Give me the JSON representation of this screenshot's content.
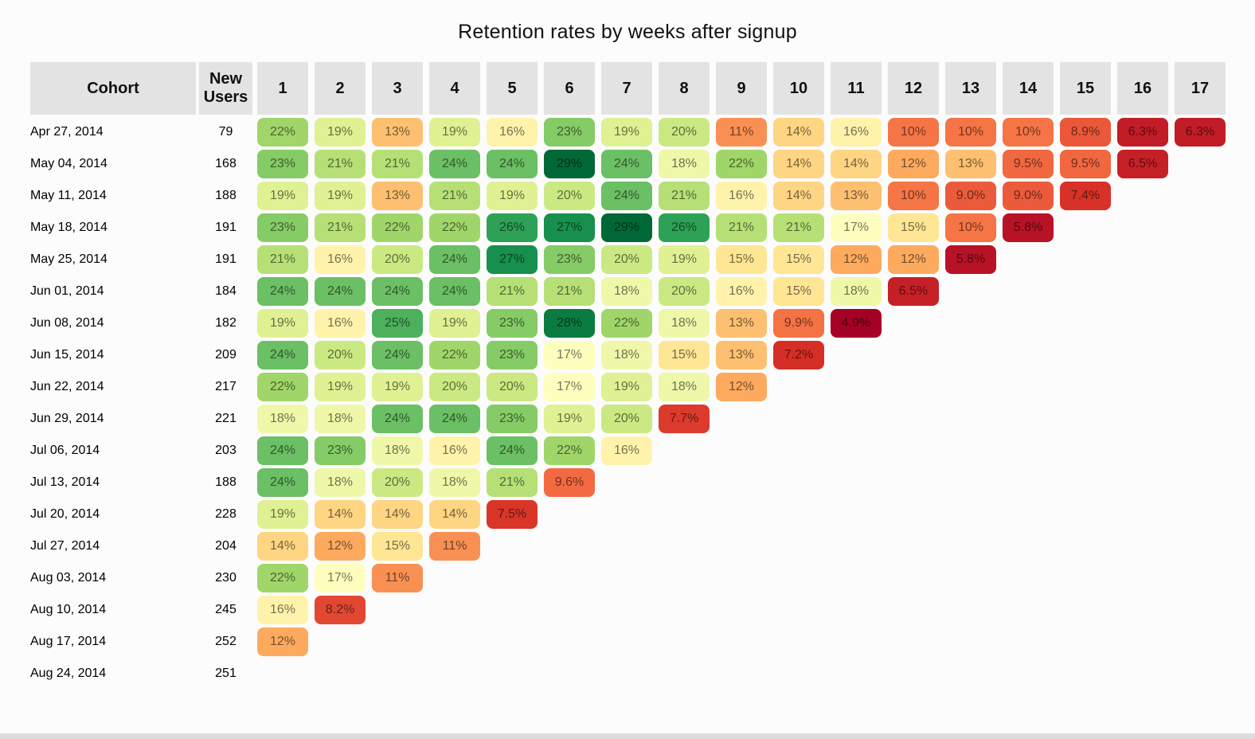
{
  "title": "Retention rates by weeks after signup",
  "table": {
    "cohort_header": "Cohort",
    "new_users_header": "New Users",
    "week_headers": [
      "1",
      "2",
      "3",
      "4",
      "5",
      "6",
      "7",
      "8",
      "9",
      "10",
      "11",
      "12",
      "13",
      "14",
      "15",
      "16",
      "17"
    ]
  },
  "chart_data": {
    "type": "heatmap",
    "title": "Retention rates by weeks after signup",
    "columns": [
      1,
      2,
      3,
      4,
      5,
      6,
      7,
      8,
      9,
      10,
      11,
      12,
      13,
      14,
      15,
      16,
      17
    ],
    "rows": [
      {
        "cohort": "Apr 27, 2014",
        "new_users": 79,
        "values": [
          22,
          19,
          13,
          19,
          16,
          23,
          19,
          20,
          11,
          14,
          16,
          10,
          10,
          10,
          8.9,
          6.3,
          6.3
        ]
      },
      {
        "cohort": "May 04, 2014",
        "new_users": 168,
        "values": [
          23,
          21,
          21,
          24,
          24,
          29,
          24,
          18,
          22,
          14,
          14,
          12,
          13,
          9.5,
          9.5,
          6.5
        ]
      },
      {
        "cohort": "May 11, 2014",
        "new_users": 188,
        "values": [
          19,
          19,
          13,
          21,
          19,
          20,
          24,
          21,
          16,
          14,
          13,
          10,
          9.0,
          9.0,
          7.4
        ]
      },
      {
        "cohort": "May 18, 2014",
        "new_users": 191,
        "values": [
          23,
          21,
          22,
          22,
          26,
          27,
          29,
          26,
          21,
          21,
          17,
          15,
          10,
          5.8
        ]
      },
      {
        "cohort": "May 25, 2014",
        "new_users": 191,
        "values": [
          21,
          16,
          20,
          24,
          27,
          23,
          20,
          19,
          15,
          15,
          12,
          12,
          5.8
        ]
      },
      {
        "cohort": "Jun 01, 2014",
        "new_users": 184,
        "values": [
          24,
          24,
          24,
          24,
          21,
          21,
          18,
          20,
          16,
          15,
          18,
          6.5
        ]
      },
      {
        "cohort": "Jun 08, 2014",
        "new_users": 182,
        "values": [
          19,
          16,
          25,
          19,
          23,
          28,
          22,
          18,
          13,
          9.9,
          4.9
        ]
      },
      {
        "cohort": "Jun 15, 2014",
        "new_users": 209,
        "values": [
          24,
          20,
          24,
          22,
          23,
          17,
          18,
          15,
          13,
          7.2
        ]
      },
      {
        "cohort": "Jun 22, 2014",
        "new_users": 217,
        "values": [
          22,
          19,
          19,
          20,
          20,
          17,
          19,
          18,
          12
        ]
      },
      {
        "cohort": "Jun 29, 2014",
        "new_users": 221,
        "values": [
          18,
          18,
          24,
          24,
          23,
          19,
          20,
          7.7
        ]
      },
      {
        "cohort": "Jul 06, 2014",
        "new_users": 203,
        "values": [
          24,
          23,
          18,
          16,
          24,
          22,
          16
        ]
      },
      {
        "cohort": "Jul 13, 2014",
        "new_users": 188,
        "values": [
          24,
          18,
          20,
          18,
          21,
          9.6
        ]
      },
      {
        "cohort": "Jul 20, 2014",
        "new_users": 228,
        "values": [
          19,
          14,
          14,
          14,
          7.5
        ]
      },
      {
        "cohort": "Jul 27, 2014",
        "new_users": 204,
        "values": [
          14,
          12,
          15,
          11
        ]
      },
      {
        "cohort": "Aug 03, 2014",
        "new_users": 230,
        "values": [
          22,
          17,
          11
        ]
      },
      {
        "cohort": "Aug 10, 2014",
        "new_users": 245,
        "values": [
          16,
          8.2
        ]
      },
      {
        "cohort": "Aug 17, 2014",
        "new_users": 252,
        "values": [
          12
        ]
      },
      {
        "cohort": "Aug 24, 2014",
        "new_users": 251,
        "values": []
      }
    ],
    "value_format": "percent, one decimal below 10",
    "colorscale": {
      "name": "RdYlGn",
      "stops": [
        "#a50026",
        "#d73027",
        "#f46d43",
        "#fdae61",
        "#fee08b",
        "#ffffbf",
        "#d9ef8b",
        "#a6d96a",
        "#66bd63",
        "#1a9850",
        "#006837"
      ],
      "domain": [
        4.9,
        29
      ]
    },
    "legend": "none",
    "grid": "off"
  },
  "colors": {
    "page_bg": "#fcfcfc",
    "header_bg": "#e3e3e3",
    "cell_text": "rgba(0,0,0,0.55)",
    "bottom_bar": "#dcdcdc"
  }
}
